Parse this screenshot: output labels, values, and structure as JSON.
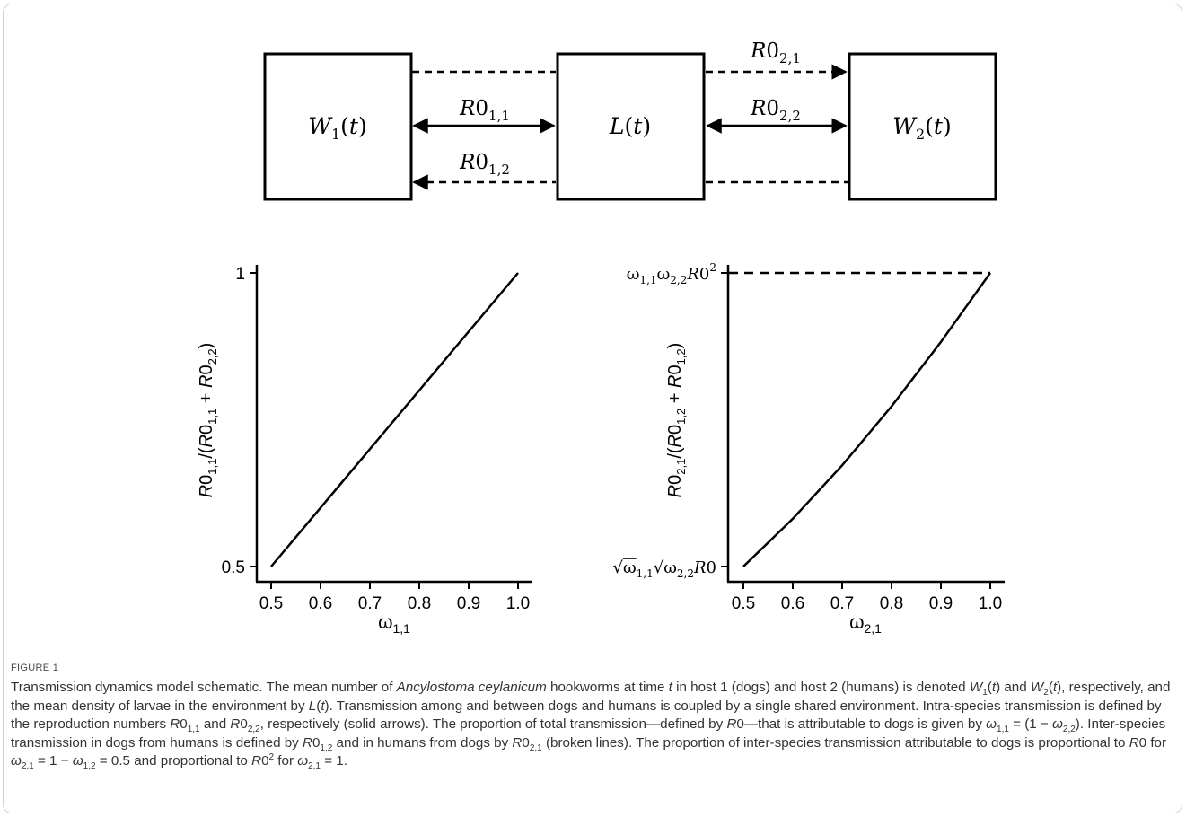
{
  "figure": {
    "label": "FIGURE 1",
    "caption_html": "Transmission dynamics model schematic. The mean number of <i>Ancylostoma ceylanicum</i> hookworms at time <i>t</i> in host 1 (dogs) and host 2 (humans) is denoted <i>W</i><sub>1</sub>(<i>t</i>) and <i>W</i><sub>2</sub>(<i>t</i>), respectively, and the mean density of larvae in the environment by <i>L</i>(<i>t</i>). Transmission among and between dogs and humans is coupled by a single shared environment. Intra-species transmission is defined by the reproduction numbers <i>R</i>0<sub>1,1</sub> and <i>R</i>0<sub>2,2</sub>, respectively (solid arrows). The proportion of total transmission—defined by <i>R</i>0—that is attributable to dogs is given by <i>ω</i><sub>1,1</sub> = (1 − <i>ω</i><sub>2,2</sub>). Inter-species transmission in dogs from humans is defined by <i>R</i>0<sub>1,2</sub> and in humans from dogs by <i>R</i>0<sub>2,1</sub> (broken lines). The proportion of inter-species transmission attributable to dogs is proportional to <i>R</i>0 for <i>ω</i><sub>2,1</sub> = 1 − <i>ω</i><sub>1,2</sub> = 0.5 and proportional to <i>R</i>0<sup>2</sup> for <i>ω</i><sub>2,1</sub> = 1."
  },
  "schematic": {
    "boxes": {
      "w1": "W1(t)",
      "l": "L(t)",
      "w2": "W2(t)"
    },
    "arrows": {
      "r011": "R01,1",
      "r012": "R01,2",
      "r022": "R02,2",
      "r021": "R02,1"
    }
  },
  "chart_data": [
    {
      "type": "line",
      "xlabel": "ω1,1",
      "ylabel": "R01,1/(R01,1 + R02,2)",
      "xlim": [
        0.5,
        1.0
      ],
      "ylim": [
        0.5,
        1.0
      ],
      "x_ticks": [
        "0.5",
        "0.6",
        "0.7",
        "0.8",
        "0.9",
        "1.0"
      ],
      "y_ticks": [
        "0.5",
        "1"
      ],
      "series": [
        {
          "x": [
            0.5,
            1.0
          ],
          "y": [
            0.5,
            1.0
          ]
        }
      ]
    },
    {
      "type": "line",
      "xlabel": "ω2,1",
      "ylabel": "R02,1/(R01,2 + R01,2)",
      "xlim": [
        0.5,
        1.0
      ],
      "x_ticks": [
        "0.5",
        "0.6",
        "0.7",
        "0.8",
        "0.9",
        "1.0"
      ],
      "y_ticks": [
        "√ω1,1√ω2,2 R0",
        "ω1,1ω2,2R0²"
      ],
      "reference_line": "dashed horizontal at ω1,1ω2,2R0²",
      "series": [
        {
          "x": [
            0.5,
            0.6,
            0.7,
            0.8,
            0.9,
            1.0
          ],
          "y": [
            0.0,
            0.1626,
            0.3445,
            0.5454,
            0.7649,
            1.0
          ]
        }
      ]
    }
  ]
}
